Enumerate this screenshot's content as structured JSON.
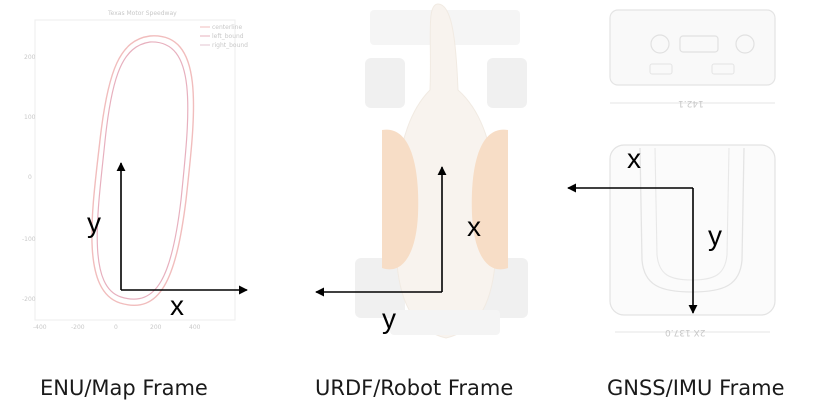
{
  "panels": [
    {
      "id": "enu",
      "caption": "ENU/Map Frame",
      "axis_x_label": "x",
      "axis_y_label": "y",
      "background": {
        "title": "Texas Motor Speedway",
        "legend": [
          "centerline",
          "left_bound",
          "right_bound"
        ],
        "y_ticks": [
          "200",
          "100",
          "0",
          "-100",
          "-200"
        ],
        "x_ticks": [
          "-400",
          "-200",
          "0",
          "200",
          "400"
        ]
      }
    },
    {
      "id": "urdf",
      "caption": "URDF/Robot Frame",
      "axis_x_label": "x",
      "axis_y_label": "y"
    },
    {
      "id": "gnss",
      "caption": "GNSS/IMU Frame",
      "axis_x_label": "x",
      "axis_y_label": "y",
      "background": {
        "dim_top": "142.1",
        "dim_bottom": "2X 137.0"
      }
    }
  ],
  "colors": {
    "axis": "#000000",
    "track_red": "#e8a0a0",
    "track_grey": "#bdbdbd",
    "car_orange": "#f2c9a0",
    "faint": "#e6e6e6"
  }
}
